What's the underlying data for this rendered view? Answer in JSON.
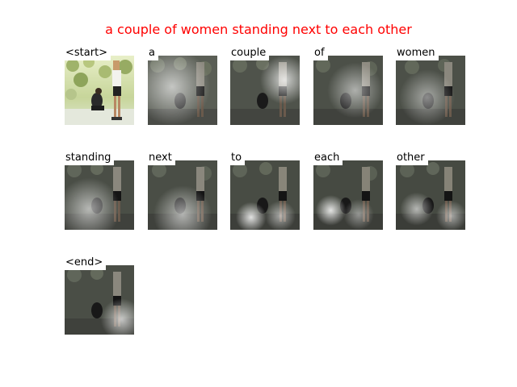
{
  "title": "a couple of women standing next to each other",
  "panels": [
    {
      "word": "<start>",
      "attention": "none"
    },
    {
      "word": "a",
      "attention": "left"
    },
    {
      "word": "couple",
      "attention": "right"
    },
    {
      "word": "of",
      "attention": "center"
    },
    {
      "word": "women",
      "attention": "left-mid"
    },
    {
      "word": "standing",
      "attention": "left-low"
    },
    {
      "word": "next",
      "attention": "center-low"
    },
    {
      "word": "to",
      "attention": "bottom-left"
    },
    {
      "word": "each",
      "attention": "bottom-left"
    },
    {
      "word": "other",
      "attention": "bottom-spread"
    },
    {
      "word": "<end>",
      "attention": "right-low"
    }
  ],
  "colors": {
    "title": "#ff0000",
    "label": "#000000",
    "background": "#ffffff"
  }
}
